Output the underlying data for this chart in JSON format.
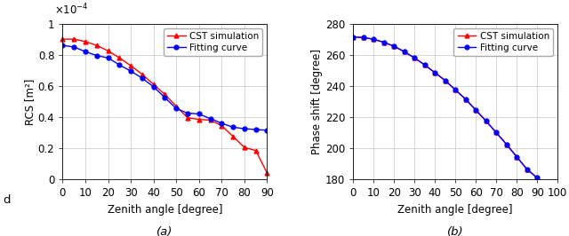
{
  "subplot_a": {
    "title": "(a)",
    "xlabel": "Zenith angle [degree]",
    "ylabel": "RCS [m²]",
    "xlim": [
      0,
      90
    ],
    "ylim": [
      0,
      0.0001
    ],
    "ytick_vals": [
      0,
      2e-05,
      4e-05,
      6e-05,
      8e-05,
      0.0001
    ],
    "ytick_labels": [
      "0",
      "0.2",
      "0.4",
      "0.6",
      "0.8",
      "1"
    ],
    "xticks": [
      0,
      10,
      20,
      30,
      40,
      50,
      60,
      70,
      80,
      90
    ],
    "cst_x": [
      0,
      5,
      10,
      15,
      20,
      25,
      30,
      35,
      40,
      45,
      50,
      55,
      60,
      65,
      70,
      75,
      80,
      85,
      90
    ],
    "cst_y": [
      9e-05,
      9e-05,
      8.85e-05,
      8.6e-05,
      8.25e-05,
      7.8e-05,
      7.3e-05,
      6.75e-05,
      6.1e-05,
      5.45e-05,
      4.7e-05,
      3.95e-05,
      3.85e-05,
      3.8e-05,
      3.45e-05,
      2.75e-05,
      2.05e-05,
      1.85e-05,
      4e-06
    ],
    "fit_x": [
      0,
      5,
      10,
      15,
      20,
      25,
      30,
      35,
      40,
      45,
      50,
      55,
      60,
      65,
      70,
      75,
      80,
      85,
      90
    ],
    "fit_y": [
      8.6e-05,
      8.5e-05,
      8.2e-05,
      7.95e-05,
      7.8e-05,
      7.35e-05,
      6.95e-05,
      6.5e-05,
      5.95e-05,
      5.25e-05,
      4.55e-05,
      4.25e-05,
      4.2e-05,
      3.9e-05,
      3.6e-05,
      3.35e-05,
      3.25e-05,
      3.2e-05,
      3.15e-05
    ],
    "cst_color": "#FF0000",
    "fit_color": "#0000FF",
    "cst_label": "CST simulation",
    "fit_label": "Fitting curve",
    "cst_marker": "^",
    "fit_marker": "o"
  },
  "subplot_b": {
    "title": "(b)",
    "xlabel": "Zenith angle [degree]",
    "ylabel": "Phase shift [degree]",
    "xlim": [
      0,
      100
    ],
    "ylim": [
      180,
      280
    ],
    "yticks": [
      180,
      200,
      220,
      240,
      260,
      280
    ],
    "xticks": [
      0,
      10,
      20,
      30,
      40,
      50,
      60,
      70,
      80,
      90,
      100
    ],
    "cst_x": [
      0,
      5,
      10,
      15,
      20,
      25,
      30,
      35,
      40,
      45,
      50,
      55,
      60,
      65,
      70,
      75,
      80,
      85,
      90
    ],
    "cst_y": [
      271.5,
      271.0,
      270.0,
      268.0,
      265.5,
      262.0,
      258.0,
      253.5,
      248.5,
      243.5,
      237.5,
      231.5,
      224.5,
      217.5,
      210.0,
      202.5,
      194.5,
      186.5,
      181.0
    ],
    "fit_x": [
      0,
      5,
      10,
      15,
      20,
      25,
      30,
      35,
      40,
      45,
      50,
      55,
      60,
      65,
      70,
      75,
      80,
      85,
      90
    ],
    "fit_y": [
      271.5,
      271.0,
      270.0,
      268.0,
      265.5,
      262.0,
      258.0,
      253.5,
      248.5,
      243.5,
      237.5,
      231.5,
      224.5,
      217.5,
      210.0,
      202.5,
      194.5,
      186.5,
      181.0
    ],
    "cst_color": "#FF0000",
    "fit_color": "#0000FF",
    "cst_label": "CST simulation",
    "fit_label": "Fitting curve",
    "cst_marker": "^",
    "fit_marker": "o"
  },
  "background_color": "#ffffff",
  "grid_color": "#d0d0d0",
  "font_size": 8.5,
  "legend_font_size": 7.5,
  "label_font_size": 8.5,
  "marker_size": 3.5,
  "line_width": 1.0
}
